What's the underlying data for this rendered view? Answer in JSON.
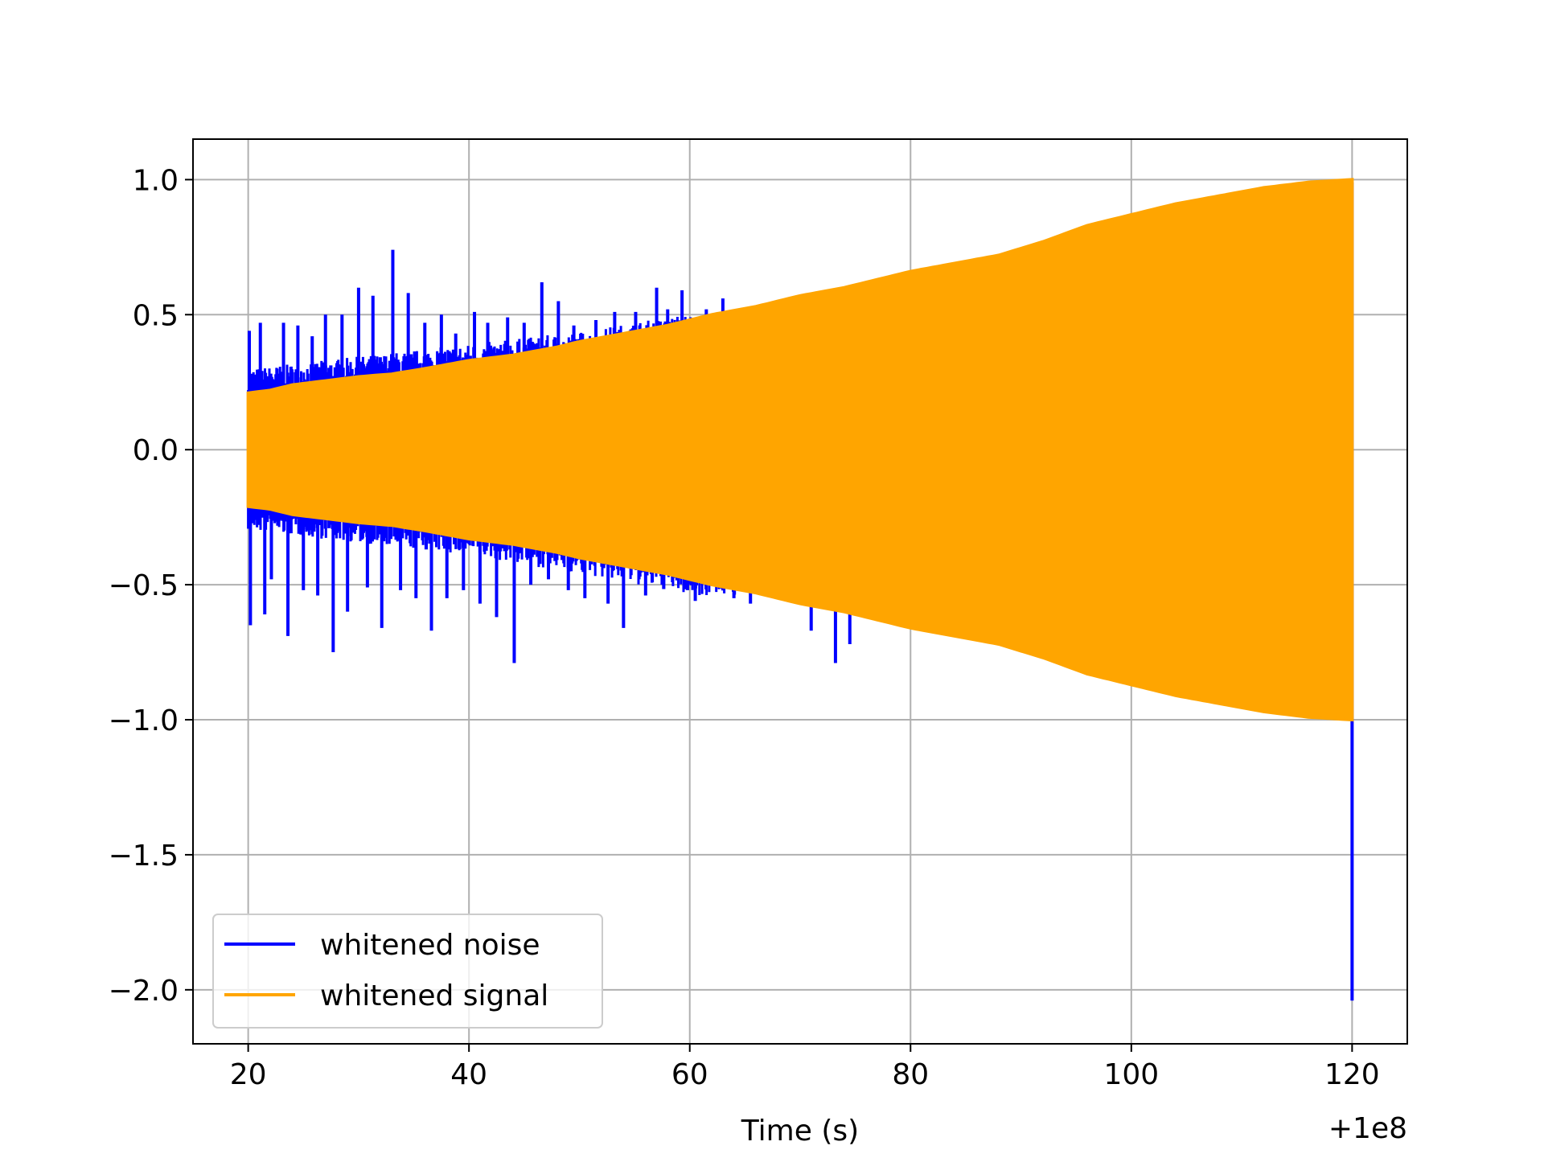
{
  "chart_data": {
    "type": "line",
    "xlabel": "Time (s)",
    "x_offset_label": "+1e8",
    "ylabel": "",
    "xlim": [
      15,
      125
    ],
    "ylim": [
      -2.2,
      1.15
    ],
    "xticks": [
      20,
      40,
      60,
      80,
      100,
      120
    ],
    "xtick_labels": [
      "20",
      "40",
      "60",
      "80",
      "100",
      "120"
    ],
    "yticks": [
      1.0,
      0.5,
      0.0,
      -0.5,
      -1.0,
      -1.5,
      -2.0
    ],
    "ytick_labels": [
      "1.0",
      "0.5",
      "0.0",
      "−0.5",
      "−1.0",
      "−1.5",
      "−2.0"
    ],
    "grid": true,
    "legend_position": "lower-left",
    "series": [
      {
        "name": "whitened noise",
        "color": "#0000ff",
        "x_range": [
          20,
          120
        ],
        "baseline_upper": [
          [
            20,
            0.26
          ],
          [
            30,
            0.3
          ],
          [
            40,
            0.34
          ],
          [
            50,
            0.38
          ],
          [
            60,
            0.44
          ]
        ],
        "baseline_lower": [
          [
            20,
            -0.26
          ],
          [
            30,
            -0.3
          ],
          [
            40,
            -0.34
          ],
          [
            50,
            -0.4
          ],
          [
            60,
            -0.47
          ]
        ],
        "spikes": [
          [
            20.1,
            0.44
          ],
          [
            20.2,
            -0.65
          ],
          [
            21.1,
            0.47
          ],
          [
            21.5,
            -0.61
          ],
          [
            22.1,
            -0.48
          ],
          [
            23.2,
            0.47
          ],
          [
            23.6,
            -0.69
          ],
          [
            24.5,
            0.46
          ],
          [
            25.0,
            -0.52
          ],
          [
            25.8,
            0.42
          ],
          [
            26.3,
            -0.54
          ],
          [
            27.0,
            0.5
          ],
          [
            27.7,
            -0.75
          ],
          [
            28.5,
            0.5
          ],
          [
            29.0,
            -0.6
          ],
          [
            30.0,
            0.6
          ],
          [
            30.8,
            -0.51
          ],
          [
            31.3,
            0.57
          ],
          [
            32.1,
            -0.66
          ],
          [
            33.1,
            0.74
          ],
          [
            33.8,
            -0.52
          ],
          [
            34.5,
            0.58
          ],
          [
            35.2,
            -0.55
          ],
          [
            36.0,
            0.47
          ],
          [
            36.6,
            -0.67
          ],
          [
            37.5,
            0.5
          ],
          [
            38.0,
            -0.55
          ],
          [
            38.8,
            0.43
          ],
          [
            39.5,
            -0.52
          ],
          [
            40.5,
            0.51
          ],
          [
            41.0,
            -0.57
          ],
          [
            41.7,
            0.47
          ],
          [
            42.5,
            -0.62
          ],
          [
            43.5,
            0.49
          ],
          [
            44.1,
            -0.79
          ],
          [
            45.0,
            0.47
          ],
          [
            45.6,
            -0.5
          ],
          [
            46.6,
            0.62
          ],
          [
            47.2,
            -0.48
          ],
          [
            48.1,
            0.55
          ],
          [
            49.0,
            -0.52
          ],
          [
            49.5,
            0.46
          ],
          [
            50.5,
            -0.55
          ],
          [
            51.5,
            0.48
          ],
          [
            52.6,
            -0.57
          ],
          [
            53.2,
            0.51
          ],
          [
            54.0,
            -0.66
          ],
          [
            55.1,
            0.51
          ],
          [
            56.0,
            -0.54
          ],
          [
            57.0,
            0.6
          ],
          [
            57.5,
            -0.5
          ],
          [
            58.0,
            0.52
          ],
          [
            59.3,
            0.59
          ],
          [
            59.8,
            -0.52
          ],
          [
            60.5,
            -0.56
          ],
          [
            61.5,
            0.52
          ],
          [
            63.0,
            0.56
          ],
          [
            64.0,
            -0.55
          ],
          [
            65.5,
            -0.57
          ],
          [
            71.0,
            -0.67
          ],
          [
            73.2,
            -0.79
          ],
          [
            74.5,
            -0.72
          ],
          [
            78.0,
            -0.58
          ],
          [
            120.0,
            0.99
          ],
          [
            120.0,
            -2.04
          ]
        ]
      },
      {
        "name": "whitened signal",
        "color": "#ffa500",
        "x_range": [
          20,
          120
        ],
        "envelope": [
          [
            20,
            0.21
          ],
          [
            22,
            0.22
          ],
          [
            24,
            0.24
          ],
          [
            26,
            0.25
          ],
          [
            28,
            0.26
          ],
          [
            30,
            0.27
          ],
          [
            33,
            0.28
          ],
          [
            36,
            0.3
          ],
          [
            40,
            0.33
          ],
          [
            44,
            0.35
          ],
          [
            48,
            0.38
          ],
          [
            50,
            0.4
          ],
          [
            54,
            0.43
          ],
          [
            58,
            0.46
          ],
          [
            62,
            0.5
          ],
          [
            66,
            0.53
          ],
          [
            70,
            0.57
          ],
          [
            74,
            0.6
          ],
          [
            78,
            0.64
          ],
          [
            80,
            0.66
          ],
          [
            84,
            0.69
          ],
          [
            88,
            0.72
          ],
          [
            92,
            0.77
          ],
          [
            96,
            0.83
          ],
          [
            100,
            0.87
          ],
          [
            104,
            0.91
          ],
          [
            108,
            0.94
          ],
          [
            112,
            0.97
          ],
          [
            116,
            0.99
          ],
          [
            120,
            1.0
          ]
        ]
      }
    ]
  }
}
